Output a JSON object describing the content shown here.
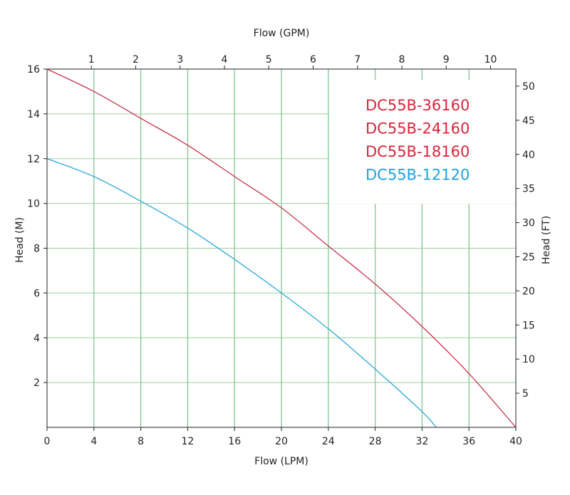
{
  "chart_data": {
    "type": "line",
    "xlabel_bottom": "Flow (LPM)",
    "xlabel_top": "Flow (GPM)",
    "ylabel_left": "Head (M)",
    "ylabel_right": "Head (FT)",
    "xlim_bottom": [
      0,
      40
    ],
    "ylim_left": [
      0,
      16
    ],
    "xlim_top": [
      0,
      10.57
    ],
    "ylim_right": [
      0,
      52.5
    ],
    "bottom_ticks": [
      "0",
      "4",
      "8",
      "12",
      "16",
      "20",
      "24",
      "28",
      "32",
      "36",
      "40"
    ],
    "bottom_tick_values": [
      0,
      4,
      8,
      12,
      16,
      20,
      24,
      28,
      32,
      36,
      40
    ],
    "left_ticks": [
      "2",
      "4",
      "6",
      "8",
      "10",
      "12",
      "14",
      "16"
    ],
    "left_tick_values": [
      2,
      4,
      6,
      8,
      10,
      12,
      14,
      16
    ],
    "top_ticks": [
      "1",
      "2",
      "3",
      "4",
      "5",
      "6",
      "7",
      "8",
      "9",
      "10"
    ],
    "top_tick_values": [
      1,
      2,
      3,
      4,
      5,
      6,
      7,
      8,
      9,
      10
    ],
    "right_ticks": [
      "5",
      "10",
      "15",
      "20",
      "25",
      "30",
      "35",
      "40",
      "45",
      "50"
    ],
    "right_tick_values": [
      5,
      10,
      15,
      20,
      25,
      30,
      35,
      40,
      45,
      50
    ],
    "grid": true,
    "legend_placement": "top-right",
    "legend": [
      {
        "label": "DC55B-36160",
        "color": "#d9253a"
      },
      {
        "label": "DC55B-24160",
        "color": "#d9253a"
      },
      {
        "label": "DC55B-18160",
        "color": "#d9253a"
      },
      {
        "label": "DC55B-12120",
        "color": "#1ea3dc"
      }
    ],
    "series": [
      {
        "color": "#c8344a",
        "x": [
          0,
          4,
          8,
          12,
          16,
          20,
          24,
          28,
          32,
          36,
          40
        ],
        "y": [
          16.0,
          15.0,
          13.8,
          12.6,
          11.2,
          9.8,
          8.1,
          6.4,
          4.5,
          2.4,
          0.0
        ]
      },
      {
        "color": "#2aa8d8",
        "x": [
          0,
          4,
          8,
          12,
          16,
          20,
          24,
          28,
          32,
          33.2
        ],
        "y": [
          12.0,
          11.2,
          10.1,
          8.9,
          7.5,
          6.0,
          4.4,
          2.6,
          0.7,
          0.0
        ]
      }
    ]
  }
}
